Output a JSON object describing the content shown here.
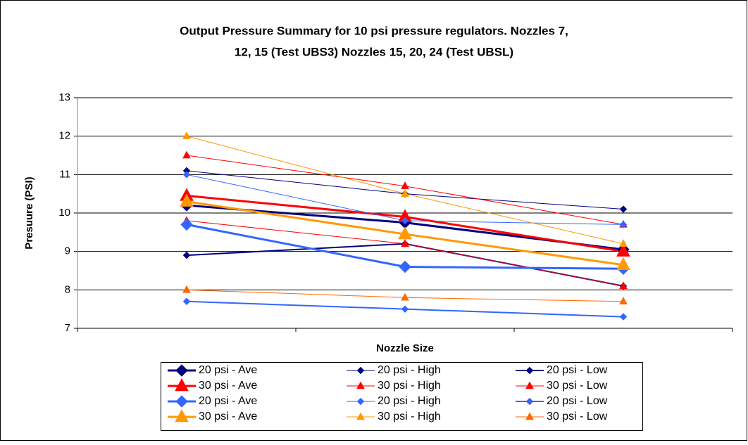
{
  "chart_data": {
    "type": "line",
    "title": "Output Pressure Summary for 10 psi pressure regulators. Nozzles 7,",
    "subtitle": "12, 15 (Test UBS3) Nozzles 15, 20, 24 (Test UBSL)",
    "y_label": "Presuure (PSI)",
    "x_label": "Nozzle Size",
    "categories": [
      null,
      null,
      null
    ],
    "ylim": [
      7,
      13
    ],
    "yticks": [
      7,
      8,
      9,
      10,
      11,
      12,
      13
    ],
    "grid": true,
    "legend": "bottom",
    "series": [
      {
        "name": "20 psi - Ave",
        "color": "#000080",
        "width": 3,
        "marker": "diamond",
        "marker_size": 8,
        "values": [
          10.2,
          9.75,
          9.05
        ]
      },
      {
        "name": "20 psi - High",
        "color": "#000080",
        "width": 1,
        "marker": "diamond",
        "marker_size": 4.5,
        "values": [
          11.1,
          10.5,
          10.1
        ]
      },
      {
        "name": "20 psi - Low",
        "color": "#000080",
        "width": 2,
        "marker": "diamond",
        "marker_size": 4.5,
        "values": [
          8.9,
          9.2,
          8.1
        ]
      },
      {
        "name": "30 psi - Ave",
        "color": "#ff0000",
        "width": 3,
        "marker": "triangle",
        "marker_size": 9,
        "values": [
          10.45,
          9.9,
          9.0
        ]
      },
      {
        "name": "30 psi - High",
        "color": "#ff0000",
        "width": 1,
        "marker": "triangle",
        "marker_size": 5,
        "values": [
          11.5,
          10.7,
          9.7
        ]
      },
      {
        "name": "30 psi - Low",
        "color": "#ff0000",
        "width": 1,
        "marker": "triangle",
        "marker_size": 5,
        "values": [
          9.8,
          9.2,
          8.1
        ]
      },
      {
        "name": "20 psi - Ave",
        "color": "#3366ff",
        "width": 3,
        "marker": "diamond",
        "marker_size": 8,
        "values": [
          9.7,
          8.6,
          8.55
        ]
      },
      {
        "name": "20 psi - High",
        "color": "#3366ff",
        "width": 1,
        "marker": "diamond",
        "marker_size": 4.5,
        "values": [
          11.0,
          9.8,
          9.7
        ]
      },
      {
        "name": "20 psi - Low",
        "color": "#3366ff",
        "width": 2,
        "marker": "diamond",
        "marker_size": 4.5,
        "values": [
          7.7,
          7.5,
          7.3
        ]
      },
      {
        "name": "30 psi - Ave",
        "color": "#ff9900",
        "width": 3,
        "marker": "triangle",
        "marker_size": 9,
        "values": [
          10.3,
          9.45,
          8.65
        ]
      },
      {
        "name": "30 psi - High",
        "color": "#ff9900",
        "width": 1,
        "marker": "triangle",
        "marker_size": 5,
        "values": [
          12.0,
          10.5,
          9.2
        ]
      },
      {
        "name": "30 psi - Low",
        "color": "#ff6600",
        "width": 1,
        "marker": "triangle",
        "marker_size": 5,
        "values": [
          8.0,
          7.8,
          7.7
        ]
      }
    ]
  }
}
